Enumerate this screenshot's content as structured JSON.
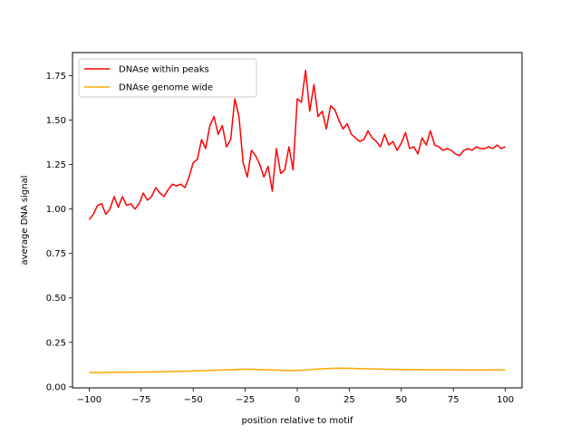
{
  "chart_data": {
    "type": "line",
    "title": "",
    "xlabel": "position relative to motif",
    "ylabel": "average DNA signal",
    "xlim": [
      -108,
      108
    ],
    "ylim": [
      -0.006,
      1.88
    ],
    "xticks": [
      -100,
      -75,
      -50,
      -25,
      0,
      25,
      50,
      75,
      100
    ],
    "xtick_labels": [
      "−100",
      "−75",
      "−50",
      "−25",
      "0",
      "25",
      "50",
      "75",
      "100"
    ],
    "yticks": [
      0.0,
      0.25,
      0.5,
      0.75,
      1.0,
      1.25,
      1.5,
      1.75
    ],
    "ytick_labels": [
      "0.00",
      "0.25",
      "0.50",
      "0.75",
      "1.00",
      "1.25",
      "1.50",
      "1.75"
    ],
    "grid": false,
    "legend_position": "top-left",
    "series": [
      {
        "name": "DNAse within peaks",
        "color": "#ff0000",
        "x": [
          -100,
          -98,
          -96,
          -94,
          -92,
          -90,
          -88,
          -86,
          -84,
          -82,
          -80,
          -78,
          -76,
          -74,
          -72,
          -70,
          -68,
          -66,
          -64,
          -62,
          -60,
          -58,
          -56,
          -54,
          -52,
          -50,
          -48,
          -46,
          -44,
          -42,
          -40,
          -38,
          -36,
          -34,
          -32,
          -30,
          -28,
          -26,
          -24,
          -22,
          -20,
          -18,
          -16,
          -14,
          -12,
          -10,
          -8,
          -6,
          -4,
          -2,
          0,
          2,
          4,
          6,
          8,
          10,
          12,
          14,
          16,
          18,
          20,
          22,
          24,
          26,
          28,
          30,
          32,
          34,
          36,
          38,
          40,
          42,
          44,
          46,
          48,
          50,
          52,
          54,
          56,
          58,
          60,
          62,
          64,
          66,
          68,
          70,
          72,
          74,
          76,
          78,
          80,
          82,
          84,
          86,
          88,
          90,
          92,
          94,
          96,
          98,
          100
        ],
        "y": [
          0.94,
          0.97,
          1.02,
          1.03,
          0.97,
          1.0,
          1.07,
          1.01,
          1.07,
          1.02,
          1.03,
          1.0,
          1.03,
          1.09,
          1.05,
          1.07,
          1.12,
          1.09,
          1.07,
          1.11,
          1.14,
          1.13,
          1.14,
          1.12,
          1.18,
          1.26,
          1.28,
          1.39,
          1.34,
          1.47,
          1.52,
          1.42,
          1.47,
          1.35,
          1.39,
          1.62,
          1.52,
          1.26,
          1.18,
          1.33,
          1.3,
          1.25,
          1.18,
          1.24,
          1.1,
          1.34,
          1.2,
          1.22,
          1.35,
          1.22,
          1.62,
          1.6,
          1.78,
          1.55,
          1.7,
          1.52,
          1.55,
          1.45,
          1.58,
          1.56,
          1.5,
          1.45,
          1.48,
          1.42,
          1.4,
          1.38,
          1.39,
          1.44,
          1.4,
          1.38,
          1.35,
          1.42,
          1.36,
          1.38,
          1.33,
          1.37,
          1.43,
          1.34,
          1.35,
          1.31,
          1.4,
          1.36,
          1.44,
          1.36,
          1.35,
          1.33,
          1.34,
          1.33,
          1.31,
          1.3,
          1.33,
          1.34,
          1.33,
          1.35,
          1.34,
          1.34,
          1.35,
          1.34,
          1.36,
          1.34,
          1.35
        ]
      },
      {
        "name": "DNAse genome wide",
        "color": "#ffa500",
        "x": [
          -100,
          -90,
          -80,
          -70,
          -60,
          -50,
          -40,
          -30,
          -25,
          -20,
          -15,
          -10,
          -5,
          0,
          5,
          10,
          15,
          20,
          25,
          30,
          40,
          50,
          60,
          70,
          80,
          90,
          100
        ],
        "y": [
          0.08,
          0.081,
          0.082,
          0.084,
          0.086,
          0.089,
          0.093,
          0.097,
          0.099,
          0.098,
          0.096,
          0.094,
          0.091,
          0.093,
          0.095,
          0.1,
          0.103,
          0.105,
          0.104,
          0.102,
          0.099,
          0.097,
          0.096,
          0.096,
          0.095,
          0.095,
          0.096
        ]
      }
    ]
  }
}
